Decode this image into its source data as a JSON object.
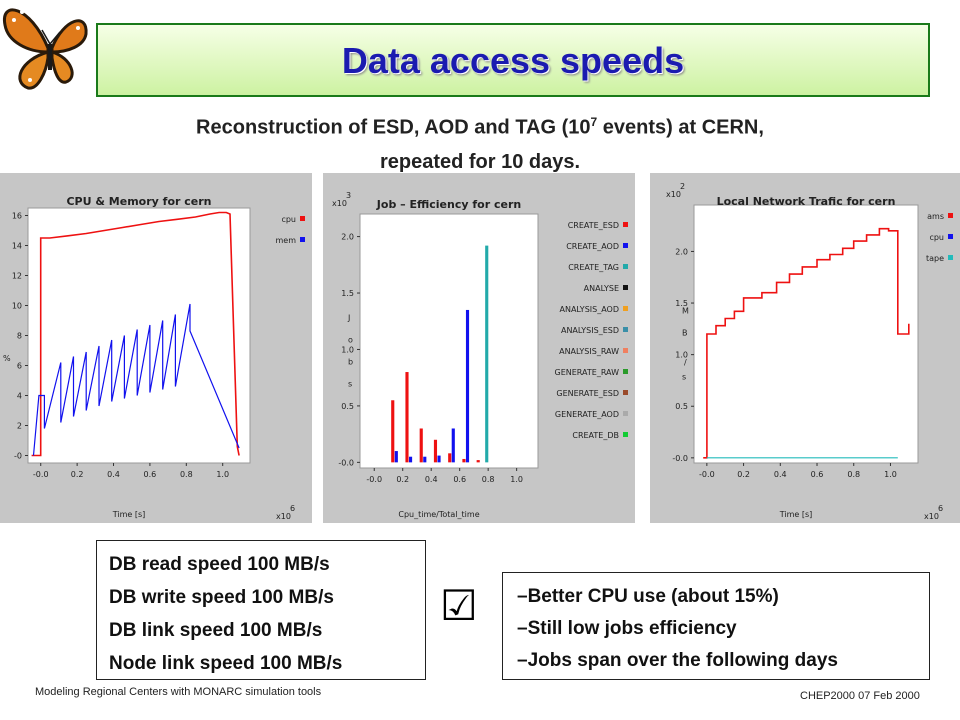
{
  "slide": {
    "title": "Data access speeds",
    "subtitle_line1_pre": "Reconstruction of ESD, AOD and TAG (10",
    "subtitle_sup": "7",
    "subtitle_line1_post": " events) at CERN,",
    "subtitle_line2": "repeated for 10 days.",
    "checkmark": "☑",
    "speeds": [
      "DB read speed 100 MB/s",
      "DB write speed 100 MB/s",
      "DB link speed 100 MB/s",
      "Node link speed 100 MB/s"
    ],
    "notes": [
      "–Better CPU use (about 15%)",
      "–Still low jobs efficiency",
      "–Jobs span over the following days"
    ],
    "footer_left": "Modeling Regional Centers with MONARC simulation tools",
    "footer_right": "CHEP2000    07 Feb 2000",
    "logo_icon": "butterfly-icon"
  },
  "chart_data": [
    {
      "type": "line",
      "title": "CPU & Memory for cern",
      "xlabel": "Time [s]",
      "ylabel": "%",
      "x_multiplier": "x10^6",
      "x_ticks": [
        "-0.0",
        "0.2",
        "0.4",
        "0.6",
        "0.8",
        "1.0"
      ],
      "y_ticks": [
        "-0",
        "2",
        "4",
        "6",
        "8",
        "10",
        "12",
        "14",
        "16"
      ],
      "xlim": [
        -0.07,
        1.15
      ],
      "ylim": [
        -0.5,
        16.5
      ],
      "series": [
        {
          "name": "cpu",
          "color": "#ee1111",
          "x": [
            -0.05,
            0.0,
            0.0,
            0.05,
            0.15,
            0.25,
            0.35,
            0.45,
            0.55,
            0.65,
            0.75,
            0.85,
            0.93,
            0.98,
            1.0,
            1.02,
            1.04,
            1.08,
            1.09
          ],
          "y": [
            0.0,
            0.0,
            14.5,
            14.5,
            14.65,
            14.8,
            15.0,
            15.2,
            15.4,
            15.6,
            15.75,
            15.9,
            16.1,
            16.2,
            16.2,
            16.2,
            16.1,
            0.6,
            0.0
          ]
        },
        {
          "name": "mem",
          "color": "#1111ee",
          "x": [
            -0.04,
            -0.01,
            0.02,
            0.02,
            0.11,
            0.11,
            0.18,
            0.18,
            0.25,
            0.25,
            0.32,
            0.32,
            0.39,
            0.39,
            0.46,
            0.46,
            0.53,
            0.53,
            0.6,
            0.6,
            0.67,
            0.67,
            0.74,
            0.74,
            0.82,
            0.82,
            1.09
          ],
          "y": [
            0.0,
            4.0,
            4.0,
            1.8,
            6.2,
            2.2,
            6.6,
            2.6,
            6.9,
            3.0,
            7.3,
            3.3,
            7.7,
            3.6,
            8.0,
            3.8,
            8.4,
            4.0,
            8.7,
            4.2,
            9.0,
            4.4,
            9.4,
            4.6,
            10.1,
            8.3,
            0.5
          ]
        }
      ],
      "legend": "right"
    },
    {
      "type": "bar",
      "title": "Job – Efficiency for cern",
      "xlabel": "Cpu_time/Total_time",
      "ylabel": "Jobs",
      "y_multiplier": "x10^3",
      "x_ticks": [
        "-0.0",
        "0.2",
        "0.4",
        "0.6",
        "0.8",
        "1.0"
      ],
      "y_ticks": [
        "-0.0",
        "0.5",
        "1.0",
        "1.5",
        "2.0"
      ],
      "xlim": [
        -0.1,
        1.15
      ],
      "ylim": [
        -0.05,
        2.2
      ],
      "bar_width": 0.022,
      "series": [
        {
          "name": "CREATE_ESD",
          "color": "#ee1111",
          "x": [
            0.13,
            0.23,
            0.33,
            0.43,
            0.53,
            0.63,
            0.73
          ],
          "values": [
            0.55,
            0.8,
            0.3,
            0.2,
            0.08,
            0.03,
            0.02
          ]
        },
        {
          "name": "CREATE_AOD",
          "color": "#1111ee",
          "x": [
            0.155,
            0.255,
            0.355,
            0.455,
            0.555,
            0.655
          ],
          "values": [
            0.1,
            0.05,
            0.05,
            0.06,
            0.3,
            1.35
          ]
        },
        {
          "name": "CREATE_TAG",
          "color": "#22aaaa",
          "x": [
            0.79
          ],
          "values": [
            1.92
          ]
        },
        {
          "name": "ANALYSE",
          "color": "#111111",
          "x": [],
          "values": []
        },
        {
          "name": "ANALYSIS_AOD",
          "color": "#f0a020",
          "x": [],
          "values": []
        },
        {
          "name": "ANALYSIS_ESD",
          "color": "#3a8fa8",
          "x": [],
          "values": []
        },
        {
          "name": "ANALYSIS_RAW",
          "color": "#f08060",
          "x": [],
          "values": []
        },
        {
          "name": "GENERATE_RAW",
          "color": "#2a9a2a",
          "x": [],
          "values": []
        },
        {
          "name": "GENERATE_ESD",
          "color": "#9a4a2a",
          "x": [],
          "values": []
        },
        {
          "name": "GENERATE_AOD",
          "color": "#aaaaaa",
          "x": [],
          "values": []
        },
        {
          "name": "CREATE_DB",
          "color": "#11cc33",
          "x": [],
          "values": []
        }
      ],
      "legend": "right"
    },
    {
      "type": "line",
      "title": "Local Network Trafic for cern",
      "xlabel": "Time [s]",
      "ylabel": "MB/s",
      "x_multiplier": "x10^6",
      "y_multiplier": "x10^2",
      "x_ticks": [
        "-0.0",
        "0.2",
        "0.4",
        "0.6",
        "0.8",
        "1.0"
      ],
      "y_ticks": [
        "-0.0",
        "0.5",
        "1.0",
        "1.5",
        "2.0"
      ],
      "xlim": [
        -0.07,
        1.15
      ],
      "ylim": [
        -0.05,
        2.45
      ],
      "series": [
        {
          "name": "ams",
          "color": "#ee1111",
          "x": [
            -0.02,
            0.0,
            0.0,
            0.05,
            0.05,
            0.1,
            0.1,
            0.15,
            0.15,
            0.2,
            0.2,
            0.3,
            0.3,
            0.38,
            0.38,
            0.45,
            0.45,
            0.52,
            0.52,
            0.6,
            0.6,
            0.67,
            0.67,
            0.74,
            0.74,
            0.8,
            0.8,
            0.87,
            0.87,
            0.94,
            0.94,
            0.99,
            0.99,
            1.04,
            1.04,
            1.1,
            1.1
          ],
          "y": [
            0.0,
            0.0,
            1.2,
            1.2,
            1.28,
            1.28,
            1.35,
            1.35,
            1.42,
            1.42,
            1.55,
            1.55,
            1.6,
            1.6,
            1.7,
            1.7,
            1.78,
            1.78,
            1.85,
            1.85,
            1.92,
            1.92,
            1.97,
            1.97,
            2.03,
            2.03,
            2.1,
            2.1,
            2.16,
            2.16,
            2.22,
            2.22,
            2.2,
            2.2,
            1.2,
            1.2,
            1.3
          ]
        },
        {
          "name": "cpu",
          "color": "#1111ee",
          "x": [],
          "y": []
        },
        {
          "name": "tape",
          "color": "#22bbbb",
          "x": [
            0.0,
            1.04
          ],
          "y": [
            0.0,
            0.0
          ]
        }
      ],
      "legend": "right"
    }
  ]
}
